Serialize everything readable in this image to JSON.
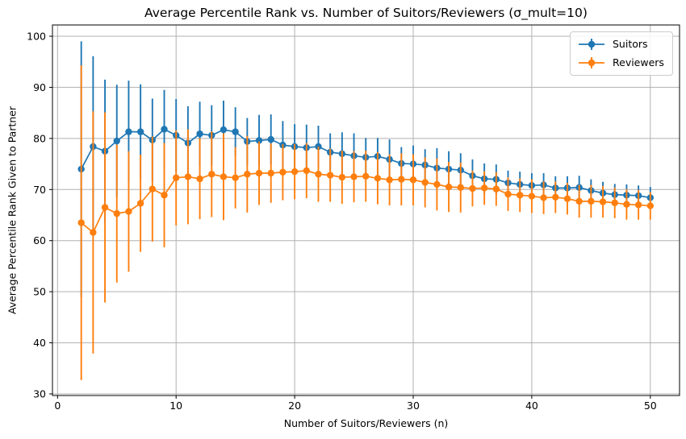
{
  "chart_data": {
    "type": "line",
    "title": "Average Percentile Rank vs. Number of Suitors/Reviewers (σ_mult=10)",
    "xlabel": "Number of Suitors/Reviewers (n)",
    "ylabel": "Average Percentile Rank Given to Partner",
    "x_ticks": [
      0,
      10,
      20,
      30,
      40,
      50
    ],
    "y_ticks": [
      30,
      40,
      50,
      60,
      70,
      80,
      90,
      100
    ],
    "xlim": [
      -0.43,
      52.47
    ],
    "ylim": [
      29.7,
      102.2
    ],
    "grid": true,
    "legend_position": "upper right",
    "grid_color": "#b0b0b0",
    "spine_color": "#000000",
    "marker": "o",
    "error_bars": true,
    "x": [
      2,
      3,
      4,
      5,
      6,
      7,
      8,
      9,
      10,
      11,
      12,
      13,
      14,
      15,
      16,
      17,
      18,
      19,
      20,
      21,
      22,
      23,
      24,
      25,
      26,
      27,
      28,
      29,
      30,
      31,
      32,
      33,
      34,
      35,
      36,
      37,
      38,
      39,
      40,
      41,
      42,
      43,
      44,
      45,
      46,
      47,
      48,
      49,
      50
    ],
    "series": [
      {
        "name": "Suitors",
        "color": "#1f77b4",
        "values": [
          74.0,
          78.4,
          77.5,
          79.5,
          81.3,
          81.3,
          79.7,
          81.8,
          80.6,
          79.1,
          80.9,
          80.6,
          81.7,
          81.3,
          79.4,
          79.6,
          79.8,
          78.7,
          78.4,
          78.2,
          78.4,
          77.3,
          77.0,
          76.6,
          76.3,
          76.5,
          75.9,
          75.1,
          75.0,
          74.8,
          74.2,
          74.0,
          73.8,
          72.7,
          72.1,
          72.0,
          71.3,
          71.0,
          70.8,
          70.9,
          70.3,
          70.3,
          70.4,
          69.8,
          69.3,
          69.0,
          68.9,
          68.8,
          68.4
        ],
        "yerr": [
          25.0,
          17.7,
          14.0,
          11.0,
          10.0,
          9.3,
          8.1,
          7.7,
          7.1,
          7.2,
          6.3,
          5.9,
          5.7,
          4.8,
          4.6,
          5.0,
          4.9,
          4.7,
          4.4,
          4.5,
          4.1,
          3.7,
          4.2,
          4.4,
          3.8,
          3.6,
          3.9,
          3.2,
          3.6,
          3.1,
          3.9,
          3.5,
          3.3,
          3.2,
          3.0,
          2.9,
          2.4,
          2.5,
          2.4,
          2.3,
          2.3,
          2.3,
          2.3,
          2.2,
          2.2,
          2.1,
          2.1,
          2.0,
          2.1
        ]
      },
      {
        "name": "Reviewers",
        "color": "#ff7f0e",
        "values": [
          63.5,
          61.6,
          66.5,
          65.3,
          65.7,
          67.3,
          70.1,
          68.9,
          72.3,
          72.5,
          72.1,
          73.0,
          72.5,
          72.3,
          73.0,
          73.2,
          73.2,
          73.4,
          73.5,
          73.7,
          73.0,
          72.8,
          72.4,
          72.5,
          72.6,
          72.2,
          71.9,
          72.0,
          71.9,
          71.4,
          71.0,
          70.5,
          70.4,
          70.2,
          70.3,
          70.1,
          69.1,
          68.9,
          68.7,
          68.4,
          68.5,
          68.2,
          67.7,
          67.7,
          67.6,
          67.4,
          67.1,
          67.0,
          66.8
        ],
        "yerr": [
          30.8,
          23.7,
          18.6,
          13.5,
          11.8,
          9.5,
          10.3,
          10.2,
          9.3,
          9.3,
          7.9,
          8.4,
          8.5,
          6.0,
          7.5,
          6.2,
          5.8,
          5.5,
          5.4,
          5.4,
          5.4,
          5.2,
          5.2,
          5.0,
          5.0,
          5.1,
          5.0,
          5.1,
          5.0,
          4.9,
          5.1,
          4.9,
          4.9,
          3.5,
          3.3,
          3.3,
          3.3,
          3.3,
          3.3,
          3.2,
          3.1,
          3.1,
          3.2,
          3.2,
          3.1,
          3.0,
          3.0,
          2.9,
          2.7
        ]
      }
    ]
  }
}
